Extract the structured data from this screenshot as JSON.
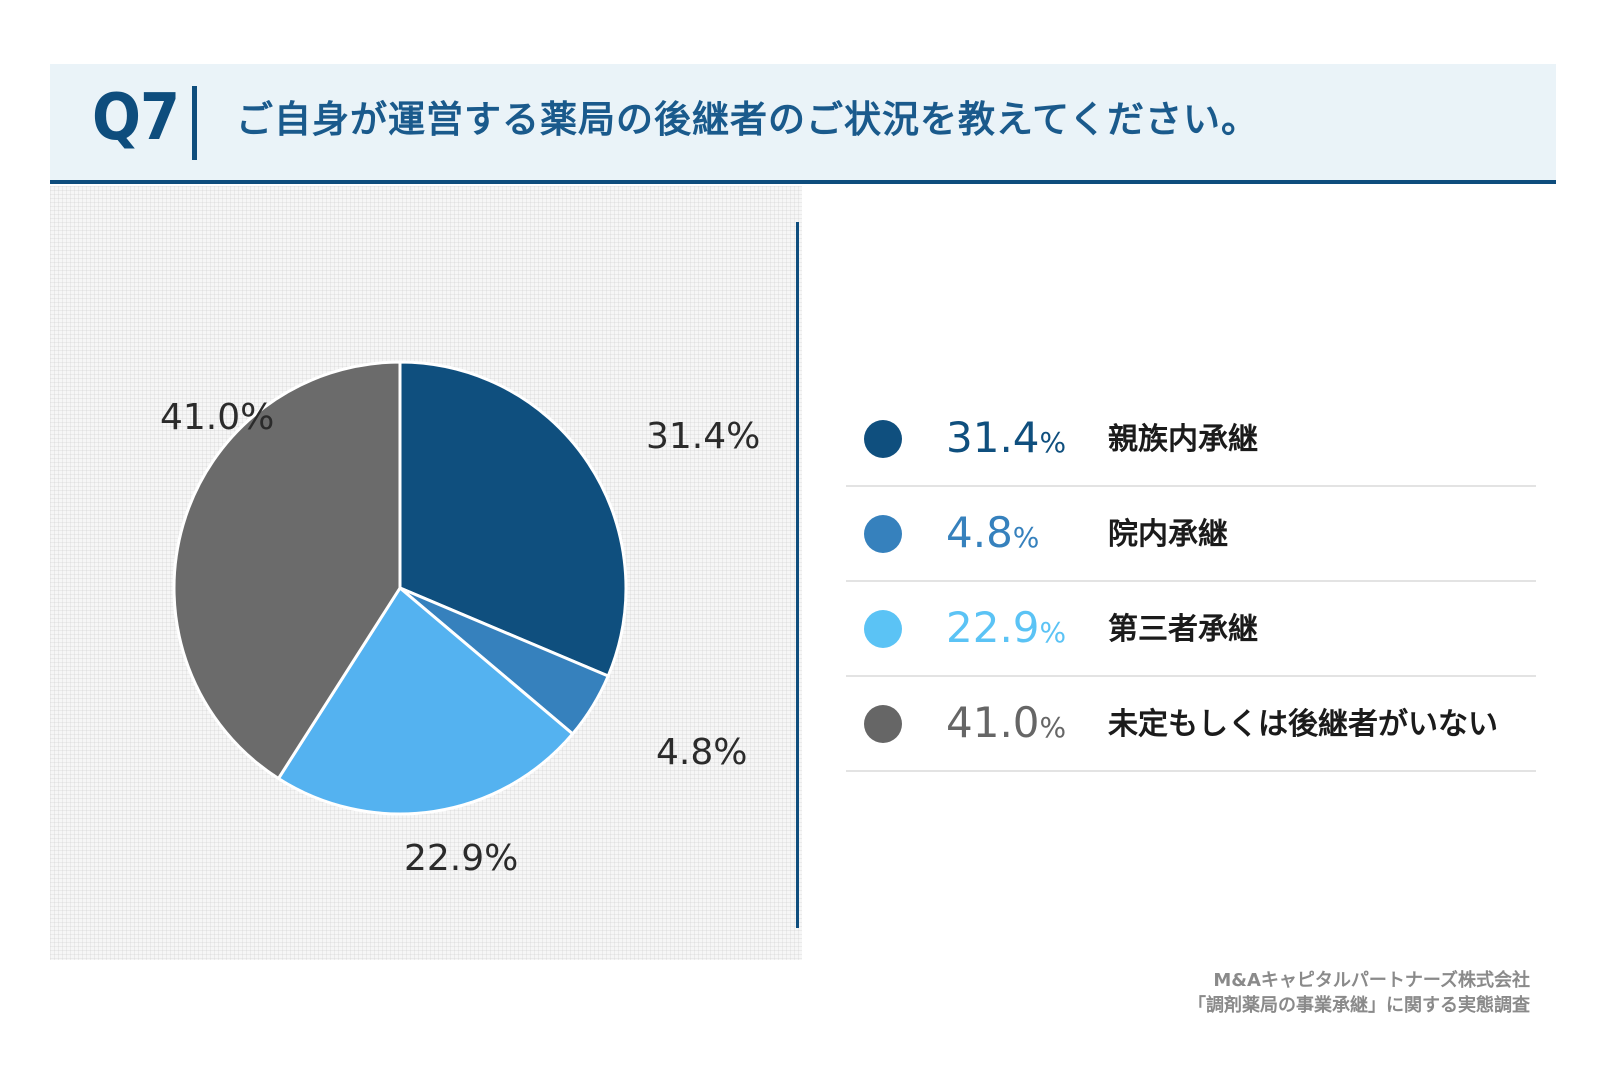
{
  "header": {
    "question_number": "Q7",
    "title": "ご自身が運営する薬局の後継者のご状況を教えてください。"
  },
  "chart_data": {
    "type": "pie",
    "slices": [
      {
        "label": "親族内承継",
        "value": 31.4,
        "display": "31.4%",
        "color": "#0f4f7e"
      },
      {
        "label": "院内承継",
        "value": 4.8,
        "display": "4.8%",
        "color": "#3681bd"
      },
      {
        "label": "第三者承継",
        "value": 22.9,
        "display": "22.9%",
        "color": "#54b2f0"
      },
      {
        "label": "未定もしくは後継者がいない",
        "value": 41.0,
        "display": "41.0%",
        "color": "#6b6b6b"
      }
    ]
  },
  "legend": [
    {
      "number": "31.4",
      "unit": "%",
      "label": "親族内承継",
      "color": "#0f4f7e"
    },
    {
      "number": "4.8",
      "unit": "%",
      "label": "院内承継",
      "color": "#3681bd"
    },
    {
      "number": "22.9",
      "unit": "%",
      "label": "第三者承継",
      "color": "#5bc3f5"
    },
    {
      "number": "41.0",
      "unit": "%",
      "label": "未定もしくは後継者がいない",
      "color": "#666666"
    }
  ],
  "footer": {
    "line1": "M&Aキャピタルパートナーズ株式会社",
    "line2": "「調剤薬局の事業承継」に関する実態調査"
  }
}
